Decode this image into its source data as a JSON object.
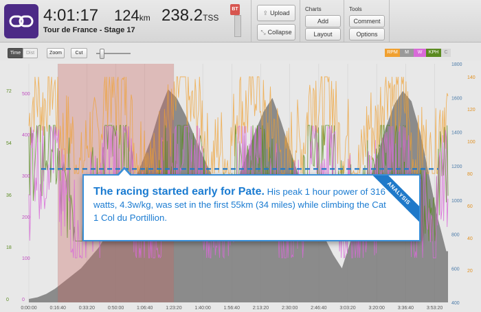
{
  "header": {
    "time": "4:01:17",
    "distance_value": "124",
    "distance_unit": "km",
    "tss_value": "238.2",
    "tss_unit": "TSS",
    "subtitle": "Tour de France - Stage 17",
    "bt_tag": "BT"
  },
  "toolbar": {
    "upload_label": "Upload",
    "collapse_label": "Collapse",
    "charts_label": "Charts",
    "add_label": "Add",
    "layout_label": "Layout",
    "tools_label": "Tools",
    "comment_label": "Comment",
    "options_label": "Options"
  },
  "controls": {
    "time_label": "Time",
    "dist_label": "Dist",
    "zoom_label": "Zoom",
    "cut_label": "Cut",
    "zoom_level": 0.15
  },
  "legend": [
    {
      "label": "RPM",
      "color": "#f0a030"
    },
    {
      "label": "M",
      "color": "#999999"
    },
    {
      "label": "W",
      "color": "#d86ad8"
    },
    {
      "label": "KPH",
      "color": "#5a8a20"
    },
    {
      "label": "C",
      "color": "#d8d8d8"
    }
  ],
  "colors": {
    "cadence": "#f0a030",
    "power": "#d86ad8",
    "speed": "#5a8a20",
    "elevation": "#7a7a7a",
    "highlight": "#c86860",
    "dashed_line": "#1f79c9",
    "callout": "#1a7bd1"
  },
  "chart_data": {
    "type": "area",
    "x_tick_labels": [
      "0:00:00",
      "0:16:40",
      "0:33:20",
      "0:50:00",
      "1:06:40",
      "1:23:20",
      "1:40:00",
      "1:56:40",
      "2:13:20",
      "2:30:00",
      "2:46:40",
      "3:03:20",
      "3:20:00",
      "3:36:40",
      "3:53:20"
    ],
    "axes": {
      "speed_ticks": [
        "72",
        "54",
        "36",
        "18",
        "0"
      ],
      "power_ticks": [
        "500",
        "400",
        "300",
        "200",
        "100",
        "0"
      ],
      "elevation_ticks": [
        "1800",
        "1600",
        "1400",
        "1200",
        "1000",
        "800",
        "600",
        "400"
      ],
      "cadence_ticks": [
        "140",
        "120",
        "100",
        "80",
        "60",
        "40",
        "20"
      ]
    },
    "elevation_m": {
      "x_min": [
        0,
        5,
        10,
        15,
        20,
        25,
        30,
        35,
        40,
        45,
        50,
        55,
        60,
        65,
        70,
        75,
        80,
        85,
        90,
        95,
        100,
        105,
        110,
        115,
        120,
        125,
        130,
        135,
        140,
        145,
        150,
        155,
        160,
        165,
        170,
        175,
        180,
        185,
        190,
        195,
        200,
        205,
        210,
        215,
        220,
        225,
        230,
        235,
        240,
        241
      ],
      "values": [
        420,
        430,
        450,
        480,
        520,
        560,
        600,
        660,
        720,
        800,
        880,
        980,
        1100,
        1220,
        1350,
        1520,
        1650,
        1600,
        1500,
        1380,
        1260,
        1150,
        1050,
        980,
        1120,
        1260,
        1400,
        1520,
        1600,
        1460,
        1300,
        1150,
        1020,
        900,
        780,
        680,
        600,
        760,
        920,
        1080,
        1250,
        1420,
        1560,
        1640,
        1580,
        1400,
        1150,
        900,
        700,
        700
      ]
    },
    "highlight": {
      "label": "peak 1 hour power",
      "start": "0:16:40",
      "end": "1:23:20"
    },
    "dashed_line": {
      "axis": "power",
      "value": 316
    },
    "series": [
      {
        "name": "RPM",
        "axis": "cadence",
        "typical_range": [
          80,
          140
        ]
      },
      {
        "name": "W",
        "axis": "power",
        "typical_range": [
          100,
          420
        ]
      },
      {
        "name": "KPH",
        "axis": "speed",
        "typical_range": [
          20,
          60
        ]
      }
    ]
  },
  "callout": {
    "headline": "The racing started early for Pate.",
    "body": " His peak 1 hour power of 316 watts, 4.3w/kg, was set in the first 55km (34 miles) while climbing the Cat 1 Col du Portillion.",
    "ribbon": "ANALYSIS"
  }
}
